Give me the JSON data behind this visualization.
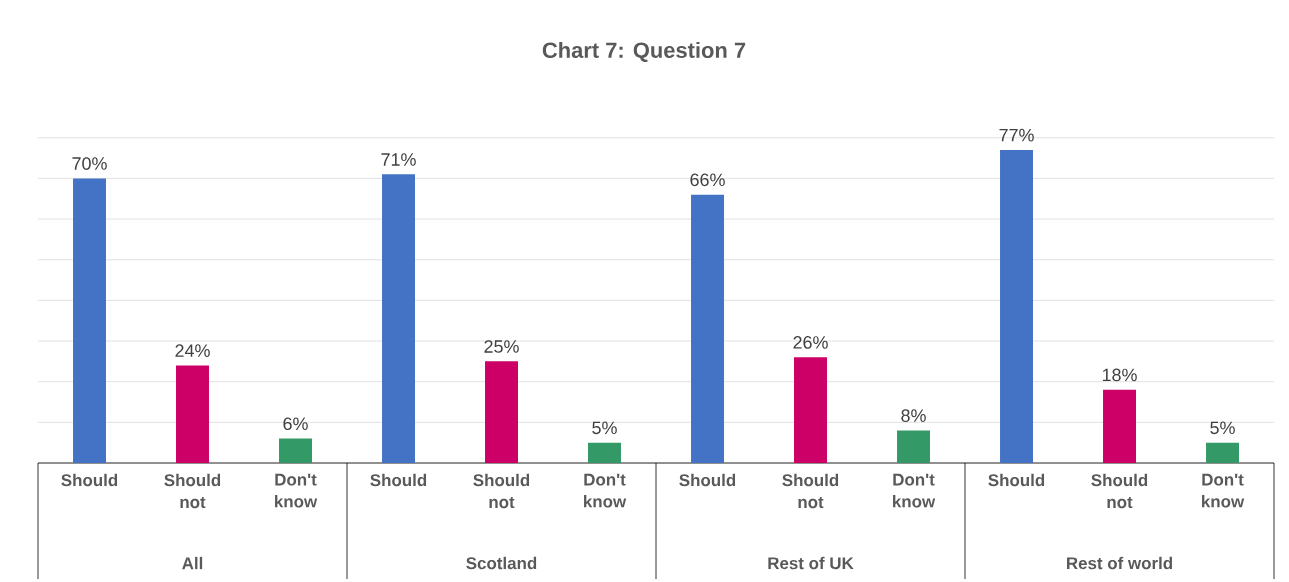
{
  "chart_data": {
    "type": "bar",
    "title": "Chart 7: Question 7",
    "categories": [
      "Should",
      "Should not",
      "Don't know",
      "Should",
      "Should not",
      "Don't know",
      "Should",
      "Should not",
      "Don't know",
      "Should",
      "Should not",
      "Don't know"
    ],
    "values": [
      70,
      24,
      6,
      71,
      25,
      5,
      66,
      26,
      8,
      77,
      18,
      5
    ],
    "value_labels": [
      "70%",
      "24%",
      "6%",
      "71%",
      "25%",
      "5%",
      "66%",
      "26%",
      "8%",
      "77%",
      "18%",
      "5%"
    ],
    "colors": [
      "#4472c4",
      "#cc0066",
      "#339966",
      "#4472c4",
      "#cc0066",
      "#339966",
      "#4472c4",
      "#cc0066",
      "#339966",
      "#4472c4",
      "#cc0066",
      "#339966"
    ],
    "annotations": [
      "All",
      "Scotland",
      "Rest of UK",
      "Rest of world"
    ],
    "grid": "y",
    "tick_labels": "x"
  }
}
